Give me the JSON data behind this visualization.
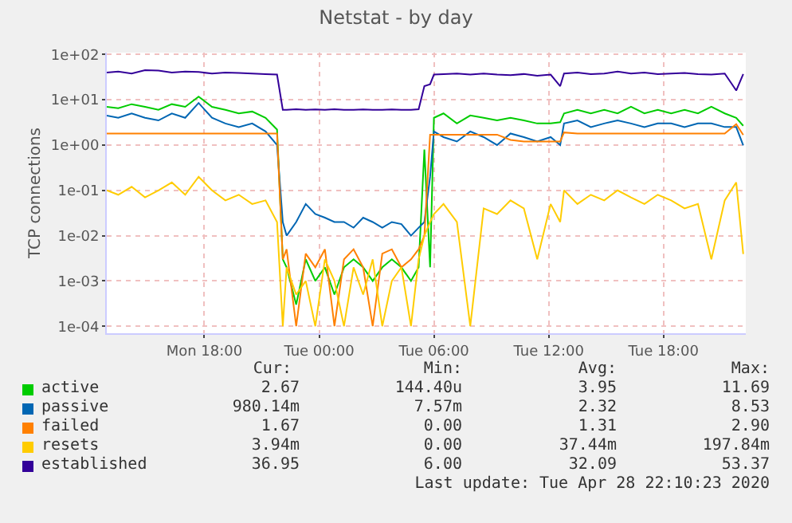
{
  "chart_data": {
    "type": "line",
    "title": "Netstat - by day",
    "ylabel": "TCP connections",
    "log": "y",
    "grid": true,
    "legend": "bottom",
    "marker": "none",
    "line_style": "solid",
    "xlim": [
      "2020-04-27T12:54",
      "2020-04-28T22:18"
    ],
    "xticks": [
      {
        "value": "2020-04-27T18:00",
        "label": "Mon 18:00"
      },
      {
        "value": "2020-04-28T00:00",
        "label": "Tue 00:00"
      },
      {
        "value": "2020-04-28T06:00",
        "label": "Tue 06:00"
      },
      {
        "value": "2020-04-28T12:00",
        "label": "Tue 12:00"
      },
      {
        "value": "2020-04-28T18:00",
        "label": "Tue 18:00"
      }
    ],
    "ylim": [
      7e-05,
      110
    ],
    "yticks": [
      {
        "value": 0.0001,
        "label": "1e-04"
      },
      {
        "value": 0.001,
        "label": "1e-03"
      },
      {
        "value": 0.01,
        "label": "1e-02"
      },
      {
        "value": 0.1,
        "label": "1e-01"
      },
      {
        "value": 1,
        "label": "1e+00"
      },
      {
        "value": 10,
        "label": "1e+01"
      },
      {
        "value": 100,
        "label": "1e+02"
      }
    ],
    "x": [
      "2020-04-27T12:54",
      "2020-04-27T13:30",
      "2020-04-27T14:12",
      "2020-04-27T14:54",
      "2020-04-27T15:36",
      "2020-04-27T16:18",
      "2020-04-27T17:00",
      "2020-04-27T17:42",
      "2020-04-27T18:24",
      "2020-04-27T19:06",
      "2020-04-27T19:48",
      "2020-04-27T20:30",
      "2020-04-27T21:12",
      "2020-04-27T21:48",
      "2020-04-27T22:06",
      "2020-04-27T22:18",
      "2020-04-27T22:48",
      "2020-04-27T23:18",
      "2020-04-27T23:48",
      "2020-04-28T00:18",
      "2020-04-28T00:48",
      "2020-04-28T01:18",
      "2020-04-28T01:48",
      "2020-04-28T02:18",
      "2020-04-28T02:48",
      "2020-04-28T03:18",
      "2020-04-28T03:48",
      "2020-04-28T04:18",
      "2020-04-28T04:48",
      "2020-04-28T05:12",
      "2020-04-28T05:30",
      "2020-04-28T05:48",
      "2020-04-28T06:00",
      "2020-04-28T06:30",
      "2020-04-28T07:12",
      "2020-04-28T07:54",
      "2020-04-28T08:36",
      "2020-04-28T09:18",
      "2020-04-28T10:00",
      "2020-04-28T10:42",
      "2020-04-28T11:24",
      "2020-04-28T12:06",
      "2020-04-28T12:36",
      "2020-04-28T12:48",
      "2020-04-28T13:30",
      "2020-04-28T14:12",
      "2020-04-28T14:54",
      "2020-04-28T15:36",
      "2020-04-28T16:18",
      "2020-04-28T17:00",
      "2020-04-28T17:42",
      "2020-04-28T18:24",
      "2020-04-28T19:06",
      "2020-04-28T19:48",
      "2020-04-28T20:30",
      "2020-04-28T21:12",
      "2020-04-28T21:48",
      "2020-04-28T22:10"
    ],
    "series": [
      {
        "name": "active",
        "color": "#00cc00",
        "values": [
          7,
          6.5,
          8,
          7,
          6,
          8,
          7,
          11.7,
          7,
          6,
          5,
          5.5,
          4,
          2.2,
          0.003,
          0.002,
          0.0003,
          0.003,
          0.001,
          0.002,
          0.0005,
          0.002,
          0.003,
          0.002,
          0.001,
          0.002,
          0.003,
          0.002,
          0.001,
          0.002,
          0.8,
          0.002,
          4,
          5,
          3,
          4.5,
          4,
          3.5,
          4,
          3.5,
          3,
          3,
          3.2,
          5,
          6,
          5,
          6,
          5,
          7,
          5,
          6,
          5,
          6,
          5,
          7,
          5,
          4,
          2.67
        ]
      },
      {
        "name": "passive",
        "color": "#0066b3",
        "values": [
          4.5,
          4,
          5,
          4,
          3.5,
          5,
          4,
          8.5,
          4,
          3,
          2.5,
          3,
          2,
          1,
          0.02,
          0.01,
          0.02,
          0.05,
          0.03,
          0.025,
          0.02,
          0.02,
          0.015,
          0.025,
          0.02,
          0.015,
          0.02,
          0.018,
          0.01,
          0.015,
          0.02,
          0.2,
          2,
          1.5,
          1.2,
          2,
          1.5,
          1,
          1.8,
          1.5,
          1.2,
          1.5,
          1,
          3,
          3.5,
          2.5,
          3,
          3.5,
          3,
          2.5,
          3,
          3,
          2.5,
          3,
          3,
          2.5,
          2.5,
          0.98
        ]
      },
      {
        "name": "failed",
        "color": "#ff8000",
        "values": [
          1.8,
          1.8,
          1.8,
          1.8,
          1.8,
          1.8,
          1.8,
          1.8,
          1.8,
          1.8,
          1.8,
          1.8,
          1.8,
          1.8,
          0.003,
          0.005,
          0.0001,
          0.004,
          0.002,
          0.005,
          0.0001,
          0.003,
          0.005,
          0.002,
          0.0001,
          0.004,
          0.005,
          0.002,
          0.003,
          0.005,
          0.01,
          1.7,
          1.7,
          1.7,
          1.7,
          1.7,
          1.7,
          1.7,
          1.3,
          1.2,
          1.2,
          1.2,
          1.2,
          1.9,
          1.8,
          1.8,
          1.8,
          1.8,
          1.8,
          1.8,
          1.8,
          1.8,
          1.8,
          1.8,
          1.8,
          1.8,
          2.9,
          1.67
        ]
      },
      {
        "name": "resets",
        "color": "#ffcc00",
        "values": [
          0.1,
          0.08,
          0.12,
          0.07,
          0.1,
          0.15,
          0.08,
          0.2,
          0.1,
          0.06,
          0.08,
          0.05,
          0.06,
          0.02,
          0.0001,
          0.002,
          0.0005,
          0.001,
          0.0001,
          0.003,
          0.001,
          0.0001,
          0.002,
          0.0005,
          0.003,
          0.0001,
          0.001,
          0.002,
          0.0001,
          0.003,
          0.01,
          0.02,
          0.03,
          0.05,
          0.02,
          0.0001,
          0.04,
          0.03,
          0.06,
          0.04,
          0.003,
          0.05,
          0.02,
          0.1,
          0.05,
          0.08,
          0.06,
          0.1,
          0.07,
          0.05,
          0.08,
          0.06,
          0.04,
          0.05,
          0.003,
          0.06,
          0.15,
          0.00394
        ]
      },
      {
        "name": "established",
        "color": "#330099",
        "values": [
          40,
          42,
          38,
          45,
          44,
          40,
          42,
          41,
          38,
          40,
          39,
          38,
          37,
          36,
          6,
          6,
          6.2,
          6,
          6.1,
          6,
          6.2,
          6,
          6,
          6.1,
          6,
          6,
          6.1,
          6,
          6,
          6.2,
          20,
          22,
          36,
          37,
          38,
          36,
          38,
          36,
          35,
          37,
          34,
          36,
          20,
          38,
          40,
          37,
          38,
          42,
          38,
          40,
          37,
          38,
          39,
          37,
          36,
          38,
          16,
          36.95
        ]
      }
    ],
    "annotations": [
      "Cur:",
      "Min:",
      "Avg:",
      "Max:",
      "2.67",
      "144.40u",
      "3.95",
      "11.69",
      "980.14m",
      "7.57m",
      "2.32",
      "8.53",
      "1.67",
      "0.00",
      "1.31",
      "2.90",
      "3.94m",
      "0.00",
      "37.44m",
      "197.84m",
      "36.95",
      "6.00",
      "32.09",
      "53.37",
      "Last update: Tue Apr 28 22:10:23 2020"
    ]
  }
}
